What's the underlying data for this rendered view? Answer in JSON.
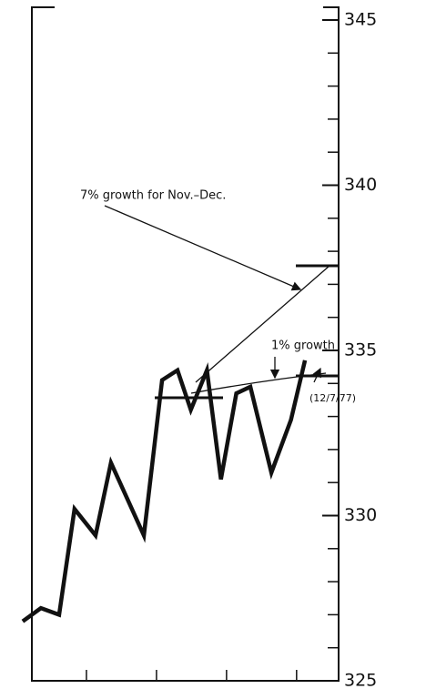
{
  "chart_data": {
    "type": "line",
    "annotations": [
      "7% growth for Nov.–Dec.",
      "1% growth",
      "(12/7/77)"
    ],
    "x": [
      0.09,
      0.35,
      0.61,
      0.83,
      1.13,
      1.35,
      1.82,
      2.08,
      2.3,
      2.49,
      2.72,
      2.92,
      3.14,
      3.34,
      3.64,
      3.92,
      4.12
    ],
    "series": [
      {
        "color": "#111111",
        "values": [
          326.8,
          327.2,
          327.0,
          330.2,
          329.4,
          331.6,
          329.4,
          334.1,
          334.4,
          333.2,
          334.4,
          331.1,
          333.7,
          333.9,
          331.3,
          332.9,
          334.7
        ]
      }
    ],
    "xlim": [
      0,
      4.6
    ],
    "xticks": [
      1,
      2,
      3,
      4
    ],
    "ylim": [
      325,
      345
    ],
    "yticks": [
      325,
      330,
      335,
      340,
      345
    ],
    "yminorticks": [
      326,
      327,
      328,
      329,
      331,
      332,
      333,
      334,
      336,
      337,
      338,
      339,
      341,
      342,
      343,
      344
    ],
    "grid": false
  }
}
